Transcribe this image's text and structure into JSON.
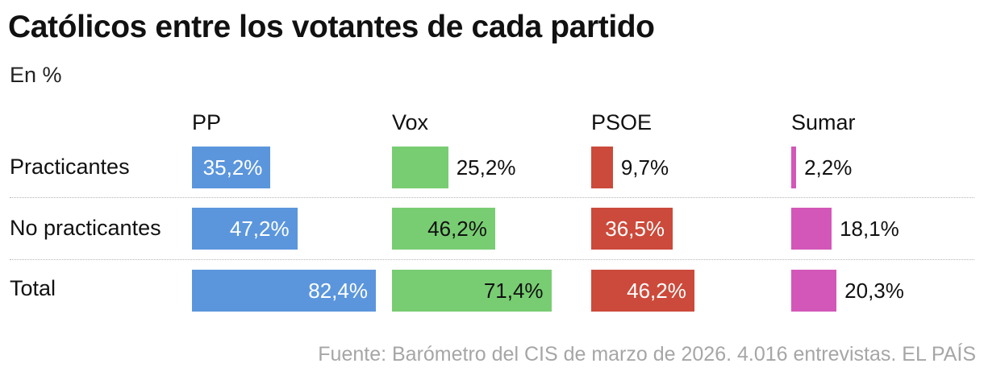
{
  "title": "Católicos entre los votantes de cada partido",
  "subtitle": "En %",
  "source": "Fuente: Barómetro del CIS de marzo de 2026. 4.016 entrevistas. EL PAÍS",
  "chart_data": {
    "type": "bar",
    "orientation": "horizontal",
    "layout": "small-multiples",
    "categories": [
      "Practicantes",
      "No practicantes",
      "Total"
    ],
    "series": [
      {
        "name": "PP",
        "color": "#5b96dd",
        "values": [
          35.2,
          47.2,
          82.4
        ],
        "labels": [
          "35,2%",
          "47,2%",
          "82,4%"
        ]
      },
      {
        "name": "Vox",
        "color": "#78cd72",
        "values": [
          25.2,
          46.2,
          71.4
        ],
        "labels": [
          "25,2%",
          "46,2%",
          "71,4%"
        ]
      },
      {
        "name": "PSOE",
        "color": "#cc4a3b",
        "values": [
          9.7,
          36.5,
          46.2
        ],
        "labels": [
          "9,7%",
          "36,5%",
          "46,2%"
        ]
      },
      {
        "name": "Sumar",
        "color": "#d357b8",
        "values": [
          2.2,
          18.1,
          20.3
        ],
        "labels": [
          "2,2%",
          "18,1%",
          "20,3%"
        ]
      }
    ],
    "xlim": [
      0,
      100
    ],
    "grid": false,
    "legend": "none"
  }
}
